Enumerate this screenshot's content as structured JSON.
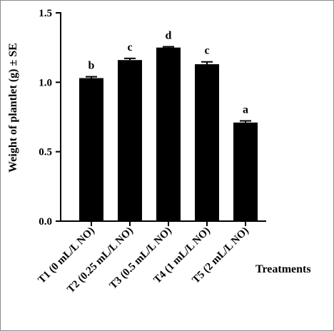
{
  "chart_data": {
    "type": "bar",
    "categories": [
      "T1 (0 mL/L NO)",
      "T2 (0.25 mL/L NO)",
      "T3 (0.5 mL/L NO)",
      "T4 (1 mL/L NO)",
      "T5 (2 mL/L NO)"
    ],
    "values": [
      1.03,
      1.16,
      1.25,
      1.13,
      0.71
    ],
    "errors": [
      0.01,
      0.012,
      0.006,
      0.017,
      0.012
    ],
    "significance_letters": [
      "b",
      "c",
      "d",
      "c",
      "a"
    ],
    "xlabel": "Treatments",
    "ylabel": "Weight of plantlet (g)  ± SE",
    "ylim": [
      0,
      1.5
    ],
    "yticks": [
      0,
      0.5,
      1.0,
      1.5
    ],
    "ytick_labels": [
      "0.0",
      "0.5",
      "1.0",
      "1.5"
    ],
    "bar_color": "#000000",
    "grid": false,
    "legend": "none"
  }
}
